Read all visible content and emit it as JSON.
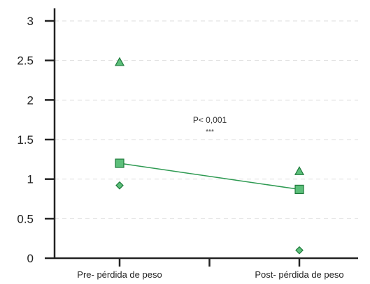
{
  "chart_data": {
    "type": "line",
    "categories": [
      "Pre- pérdida de peso",
      "Post- pérdida de peso"
    ],
    "ylim": [
      0,
      3
    ],
    "yticks": [
      "0",
      "0.5",
      "1",
      "1.5",
      "2",
      "2.5",
      "3"
    ],
    "grid": true,
    "series": [
      {
        "marker": "square",
        "connected": true,
        "values": [
          1.2,
          0.87
        ]
      },
      {
        "marker": "triangle",
        "connected": false,
        "values": [
          2.48,
          1.1
        ]
      },
      {
        "marker": "diamond",
        "connected": false,
        "values": [
          0.92,
          0.1
        ]
      }
    ],
    "annotations": [
      "P< 0,001",
      "***"
    ],
    "colors": {
      "line": "#2e9a52",
      "marker_fill": "#5cbf7a",
      "marker_stroke": "#1f7a3c",
      "grid": "#dddddd",
      "axis": "#222222"
    }
  }
}
